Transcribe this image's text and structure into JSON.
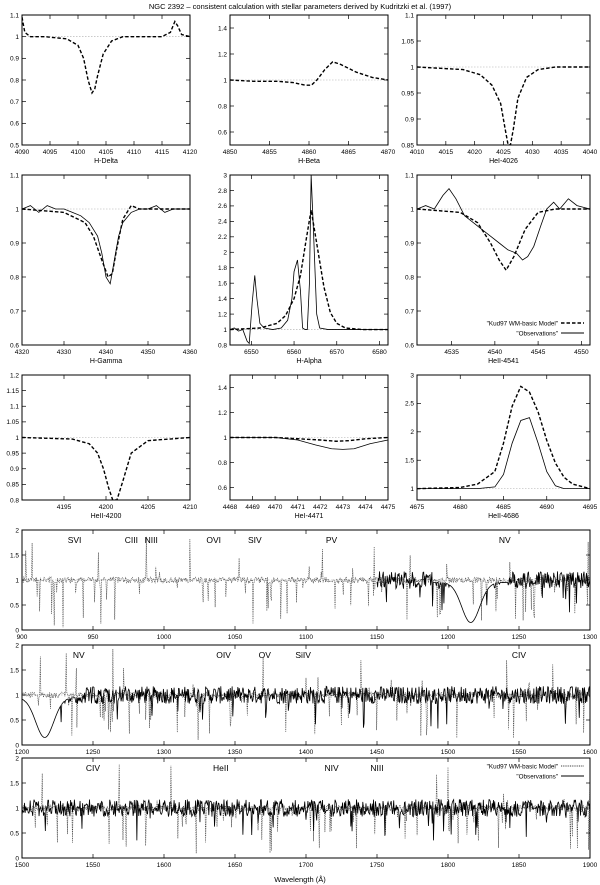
{
  "figure": {
    "title": "NGC 2392 – consistent calculation with stellar parameters derived by Kudritzki et al. (1997)",
    "bottom_xlabel": "Wavelength (Å)",
    "legend_model": "\"Kud97 WM-basic Model\"",
    "legend_obs": "\"Observations\""
  },
  "chart_data": [
    {
      "type": "line",
      "xlabel": "H-Delta",
      "xlim": [
        4090,
        4120
      ],
      "ylim": [
        0.5,
        1.1
      ],
      "xticks": [
        4090,
        4095,
        4100,
        4105,
        4110,
        4115,
        4120
      ],
      "yticks": [
        0.5,
        0.6,
        0.7,
        0.8,
        0.9,
        1,
        1.1
      ],
      "series": [
        {
          "style": "model",
          "x": [
            4090,
            4090.5,
            4091.5,
            4094,
            4098,
            4100,
            4101,
            4101.8,
            4102.5,
            4103,
            4103.5,
            4104.5,
            4106,
            4108,
            4112,
            4115,
            4116.5,
            4117.3,
            4117.8,
            4118.5,
            4120
          ],
          "y": [
            1.09,
            1.02,
            1.0,
            1.0,
            0.99,
            0.96,
            0.9,
            0.8,
            0.74,
            0.76,
            0.82,
            0.92,
            0.98,
            1.0,
            1.0,
            1.0,
            1.02,
            1.07,
            1.05,
            1.01,
            1.0
          ]
        }
      ]
    },
    {
      "type": "line",
      "xlabel": "H-Beta",
      "xlim": [
        4850,
        4870
      ],
      "ylim": [
        0.5,
        1.5
      ],
      "xticks": [
        4850,
        4855,
        4860,
        4865,
        4870
      ],
      "yticks": [
        0.6,
        0.8,
        1,
        1.2,
        1.4
      ],
      "series": [
        {
          "style": "model",
          "x": [
            4850,
            4853,
            4856,
            4858,
            4859.5,
            4860.3,
            4861,
            4862,
            4863,
            4864,
            4866,
            4868,
            4870
          ],
          "y": [
            1.0,
            0.99,
            0.99,
            0.98,
            0.96,
            0.96,
            1.0,
            1.08,
            1.14,
            1.12,
            1.06,
            1.02,
            1.0
          ]
        }
      ]
    },
    {
      "type": "line",
      "xlabel": "HeI-4026",
      "xlim": [
        4010,
        4040
      ],
      "ylim": [
        0.85,
        1.1
      ],
      "xticks": [
        4010,
        4015,
        4020,
        4025,
        4030,
        4035,
        4040
      ],
      "yticks": [
        0.85,
        0.9,
        0.95,
        1,
        1.05,
        1.1
      ],
      "series": [
        {
          "style": "model",
          "x": [
            4010,
            4018,
            4021,
            4023,
            4024.5,
            4025.3,
            4025.8,
            4026.2,
            4026.7,
            4027.5,
            4029,
            4031,
            4034,
            4040
          ],
          "y": [
            1.0,
            0.995,
            0.985,
            0.965,
            0.93,
            0.88,
            0.85,
            0.85,
            0.88,
            0.94,
            0.98,
            0.995,
            1.0,
            1.0
          ]
        }
      ]
    },
    {
      "type": "line",
      "xlabel": "H-Gamma",
      "xlim": [
        4320,
        4360
      ],
      "ylim": [
        0.6,
        1.1
      ],
      "xticks": [
        4320,
        4330,
        4340,
        4350,
        4360
      ],
      "yticks": [
        0.6,
        0.7,
        0.8,
        0.9,
        1,
        1.1
      ],
      "series": [
        {
          "style": "model",
          "x": [
            4320,
            4330,
            4335,
            4337,
            4339,
            4340.5,
            4341.5,
            4342.5,
            4344,
            4346,
            4348,
            4352,
            4360
          ],
          "y": [
            1.0,
            0.99,
            0.96,
            0.92,
            0.85,
            0.8,
            0.81,
            0.88,
            0.97,
            1.01,
            1.0,
            1.0,
            1.0
          ]
        },
        {
          "style": "obs",
          "x": [
            4320,
            4322,
            4324,
            4326,
            4328,
            4330,
            4332,
            4334,
            4336,
            4338,
            4339,
            4340,
            4341,
            4342,
            4343,
            4344,
            4346,
            4348,
            4350,
            4352,
            4354,
            4356,
            4358,
            4360
          ],
          "y": [
            1.0,
            1.01,
            0.99,
            1.01,
            1.0,
            1.0,
            0.99,
            0.98,
            0.96,
            0.92,
            0.87,
            0.8,
            0.78,
            0.85,
            0.92,
            0.96,
            0.99,
            1.0,
            1.0,
            1.01,
            0.99,
            1.0,
            1.0,
            1.0
          ]
        }
      ]
    },
    {
      "type": "line",
      "xlabel": "H-Alpha",
      "xlim": [
        6545,
        6582
      ],
      "ylim": [
        0.8,
        3
      ],
      "xticks": [
        6550,
        6560,
        6570,
        6580
      ],
      "yticks": [
        0.8,
        1,
        1.2,
        1.4,
        1.6,
        1.8,
        2,
        2.2,
        2.4,
        2.6,
        2.8,
        3
      ],
      "series": [
        {
          "style": "model",
          "x": [
            6545,
            6552,
            6556,
            6558,
            6560,
            6561.5,
            6562.8,
            6564,
            6565.5,
            6567,
            6568.5,
            6570,
            6572,
            6576,
            6582
          ],
          "y": [
            1.0,
            1.02,
            1.08,
            1.18,
            1.4,
            1.7,
            2.15,
            2.55,
            2.05,
            1.55,
            1.22,
            1.08,
            1.02,
            1.0,
            1.0
          ]
        },
        {
          "style": "obs",
          "x": [
            6545,
            6546,
            6547,
            6548,
            6549,
            6549.5,
            6550.2,
            6550.8,
            6551.3,
            6552,
            6553,
            6555,
            6557,
            6558.5,
            6559.5,
            6560,
            6560.8,
            6561.5,
            6562,
            6562.6,
            6563.1,
            6563.6,
            6564,
            6564.6,
            6565.3,
            6566,
            6568,
            6570,
            6575,
            6582
          ],
          "y": [
            1.0,
            1.02,
            0.98,
            1.0,
            0.85,
            0.82,
            1.35,
            1.7,
            1.4,
            1.08,
            1.02,
            1.0,
            1.02,
            1.12,
            1.4,
            1.75,
            1.9,
            1.5,
            1.02,
            1.0,
            1.0,
            1.6,
            3.0,
            2.2,
            1.2,
            1.02,
            1.0,
            1.0,
            1.0,
            1.0
          ]
        }
      ]
    },
    {
      "type": "line",
      "xlabel": "HeII-4541",
      "xlim": [
        4531,
        4551
      ],
      "ylim": [
        0.6,
        1.1
      ],
      "xticks": [
        4535,
        4540,
        4545,
        4550
      ],
      "yticks": [
        0.6,
        0.7,
        0.8,
        0.9,
        1,
        1.1
      ],
      "legend": [
        "\"Kud97 WM-basic Model\"",
        "\"Observations\""
      ],
      "series": [
        {
          "style": "model",
          "x": [
            4531,
            4536,
            4538,
            4539.5,
            4540.5,
            4541.3,
            4542.2,
            4543.5,
            4545,
            4547,
            4551
          ],
          "y": [
            1.0,
            0.99,
            0.96,
            0.9,
            0.85,
            0.82,
            0.86,
            0.94,
            0.99,
            1.0,
            1.0
          ]
        },
        {
          "style": "obs",
          "x": [
            4531,
            4532,
            4533,
            4534,
            4534.7,
            4535.5,
            4536.5,
            4537.5,
            4538.5,
            4539.5,
            4540.5,
            4541.5,
            4542.5,
            4543.2,
            4543.8,
            4544.5,
            4545.3,
            4546,
            4546.8,
            4547.5,
            4548.5,
            4549.5,
            4551
          ],
          "y": [
            1.0,
            1.01,
            1.0,
            1.04,
            1.06,
            1.03,
            0.98,
            0.96,
            0.94,
            0.92,
            0.9,
            0.88,
            0.87,
            0.85,
            0.86,
            0.89,
            0.95,
            1.0,
            1.02,
            1.0,
            1.03,
            1.01,
            1.0
          ]
        }
      ]
    },
    {
      "type": "line",
      "xlabel": "HeII-4200",
      "xlim": [
        4190,
        4210
      ],
      "ylim": [
        0.8,
        1.2
      ],
      "xticks": [
        4195,
        4200,
        4205,
        4210
      ],
      "yticks": [
        0.8,
        0.85,
        0.9,
        0.95,
        1,
        1.05,
        1.1,
        1.15,
        1.2
      ],
      "series": [
        {
          "style": "model",
          "x": [
            4190,
            4196,
            4198,
            4199,
            4199.7,
            4200.3,
            4200.8,
            4201.3,
            4202,
            4203,
            4205,
            4210
          ],
          "y": [
            1.0,
            0.995,
            0.98,
            0.95,
            0.9,
            0.84,
            0.8,
            0.8,
            0.86,
            0.95,
            0.99,
            1.0
          ]
        }
      ]
    },
    {
      "type": "line",
      "xlabel": "HeI-4471",
      "xlim": [
        4468,
        4475
      ],
      "ylim": [
        0.5,
        1.5
      ],
      "xticks": [
        4468,
        4469,
        4470,
        4471,
        4472,
        4473,
        4474,
        4475
      ],
      "yticks": [
        0.6,
        0.8,
        1,
        1.2,
        1.4
      ],
      "series": [
        {
          "style": "model",
          "x": [
            4468,
            4470,
            4471,
            4472,
            4472.7,
            4473.3,
            4474,
            4475
          ],
          "y": [
            1.0,
            1.0,
            0.99,
            0.98,
            0.97,
            0.975,
            0.99,
            1.0
          ]
        },
        {
          "style": "obs",
          "x": [
            4468,
            4469,
            4470,
            4471,
            4471.8,
            4472.5,
            4473,
            4473.5,
            4474.2,
            4475
          ],
          "y": [
            1.0,
            1.0,
            1.0,
            0.98,
            0.94,
            0.91,
            0.905,
            0.91,
            0.95,
            0.98
          ]
        }
      ]
    },
    {
      "type": "line",
      "xlabel": "HeII-4686",
      "xlim": [
        4675,
        4695
      ],
      "ylim": [
        0.8,
        3
      ],
      "xticks": [
        4675,
        4680,
        4685,
        4690,
        4695
      ],
      "yticks": [
        1,
        1.5,
        2,
        2.5,
        3
      ],
      "series": [
        {
          "style": "model",
          "x": [
            4675,
            4680,
            4682,
            4684,
            4685,
            4686,
            4687,
            4688,
            4689,
            4690,
            4691,
            4692,
            4693,
            4695
          ],
          "y": [
            1.0,
            1.02,
            1.08,
            1.3,
            1.8,
            2.45,
            2.8,
            2.7,
            2.35,
            1.85,
            1.45,
            1.2,
            1.08,
            1.0
          ]
        },
        {
          "style": "obs",
          "x": [
            4675,
            4682,
            4684,
            4685,
            4686,
            4687,
            4688,
            4689,
            4690,
            4691,
            4692,
            4695
          ],
          "y": [
            1.0,
            1.0,
            1.03,
            1.25,
            1.8,
            2.2,
            2.25,
            1.8,
            1.3,
            1.05,
            1.0,
            1.0
          ]
        }
      ]
    },
    {
      "type": "line",
      "xlabel": "",
      "xlim": [
        900,
        1300
      ],
      "ylim": [
        0,
        2
      ],
      "xticks": [
        900,
        950,
        1000,
        1050,
        1100,
        1150,
        1200,
        1250,
        1300
      ],
      "yticks": [
        0,
        0.5,
        1,
        1.5,
        2
      ],
      "ion_labels": [
        {
          "text": "SVI",
          "x": 937
        },
        {
          "text": "CIII",
          "x": 977
        },
        {
          "text": "NIII",
          "x": 991
        },
        {
          "text": "OVI",
          "x": 1035
        },
        {
          "text": "SIV",
          "x": 1064
        },
        {
          "text": "PV",
          "x": 1118
        },
        {
          "text": "NV",
          "x": 1240
        }
      ],
      "series": [
        {
          "style": "model-thin",
          "range": [
            900,
            1300
          ]
        },
        {
          "style": "obs",
          "range": [
            1150,
            1300
          ]
        }
      ]
    },
    {
      "type": "line",
      "xlabel": "",
      "xlim": [
        1200,
        1600
      ],
      "ylim": [
        0,
        2
      ],
      "xticks": [
        1200,
        1250,
        1300,
        1350,
        1400,
        1450,
        1500,
        1550,
        1600
      ],
      "yticks": [
        0,
        0.5,
        1,
        1.5,
        2
      ],
      "ion_labels": [
        {
          "text": "NV",
          "x": 1240
        },
        {
          "text": "OIV",
          "x": 1342
        },
        {
          "text": "OV",
          "x": 1371
        },
        {
          "text": "SiIV",
          "x": 1398
        },
        {
          "text": "CIV",
          "x": 1550
        }
      ],
      "series": [
        {
          "style": "model-thin",
          "range": [
            1200,
            1600
          ]
        },
        {
          "style": "obs",
          "range": [
            1200,
            1600
          ]
        }
      ]
    },
    {
      "type": "line",
      "xlabel": "Wavelength (Å)",
      "xlim": [
        1500,
        1900
      ],
      "ylim": [
        0,
        2
      ],
      "xticks": [
        1500,
        1550,
        1600,
        1650,
        1700,
        1750,
        1800,
        1850,
        1900
      ],
      "yticks": [
        0,
        0.5,
        1,
        1.5,
        2
      ],
      "ion_labels": [
        {
          "text": "CIV",
          "x": 1550
        },
        {
          "text": "HeII",
          "x": 1640
        },
        {
          "text": "NIV",
          "x": 1718
        },
        {
          "text": "NIII",
          "x": 1750
        }
      ],
      "legend": [
        "\"Kud97 WM-basic Model\"",
        "\"Observations\""
      ],
      "series": [
        {
          "style": "model-thin",
          "range": [
            1500,
            1900
          ]
        },
        {
          "style": "obs",
          "range": [
            1500,
            1900
          ]
        }
      ]
    }
  ]
}
